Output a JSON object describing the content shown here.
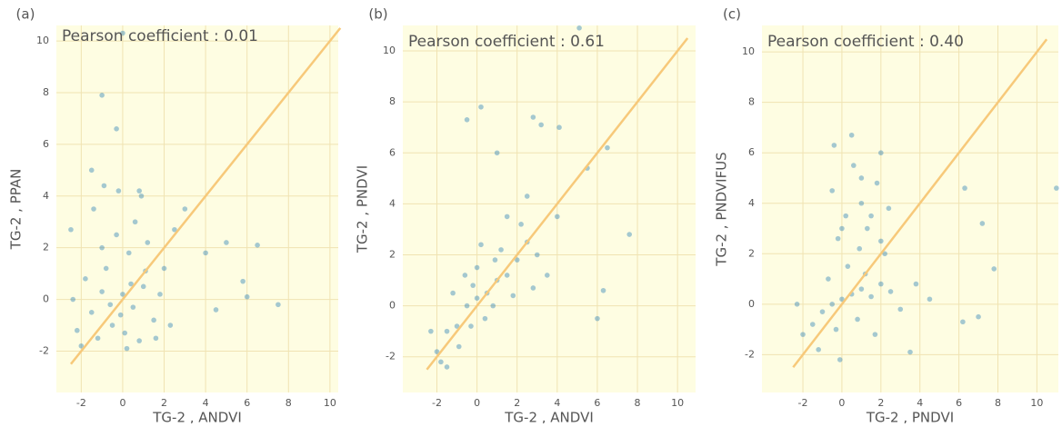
{
  "chart_data": [
    {
      "type": "scatter",
      "title": "(a)",
      "annotation": "Pearson coefficient : 0.01",
      "x_label": "TG-2 , ANDVI",
      "y_label": "TG-2 , PPAN",
      "color": "#1f77b4",
      "xlim": [
        -3.2,
        10.4
      ],
      "ylim": [
        -3.6,
        10.6
      ],
      "xticks": [
        -2,
        0,
        2,
        4,
        6,
        8,
        10
      ],
      "yticks": [
        -2,
        0,
        2,
        4,
        6,
        8,
        10
      ],
      "grid": true,
      "reference_line": {
        "x": [
          -2.5,
          10.5
        ],
        "y": [
          -2.5,
          10.5
        ],
        "color": "#f7c97a"
      },
      "x": [
        -1.5,
        -1,
        -0.5,
        0,
        0.5,
        1,
        1.5,
        -0.8,
        0.3,
        -1.2,
        0.8,
        1.8,
        -1.8,
        -0.3,
        0.6,
        -1.4,
        -0.2,
        1.2,
        2,
        2.3,
        -2,
        -0.6,
        0.1,
        1.1,
        -1,
        0.4,
        -0.1,
        1.6,
        2.5,
        -2.4,
        0.9,
        -0.9,
        0.2,
        -1,
        -0.3,
        0,
        7.5,
        6.5,
        5.8,
        4,
        3,
        -1.5,
        0.8,
        6,
        5,
        4.5,
        -2.5,
        -2.2
      ],
      "y": [
        -0.5,
        0.3,
        -1,
        0.2,
        -0.3,
        0.5,
        -0.8,
        1.2,
        1.8,
        -1.5,
        -1.6,
        0.2,
        0.8,
        2.5,
        3,
        3.5,
        4.2,
        2.2,
        1.2,
        -1,
        -1.8,
        -0.2,
        -1.3,
        1.1,
        2,
        0.6,
        -0.6,
        -1.5,
        2.7,
        0,
        4,
        4.4,
        -1.9,
        7.9,
        6.6,
        10.3,
        -0.2,
        2.1,
        0.7,
        1.8,
        3.5,
        5,
        4.2,
        0.1,
        2.2,
        -0.4,
        2.7,
        -1.2
      ]
    },
    {
      "type": "scatter",
      "title": "(b)",
      "annotation": "Pearson coefficient : 0.61",
      "x_label": "TG-2 , ANDVI",
      "y_label": "TG-2 , PNDVI",
      "color": "#1f77b4",
      "xlim": [
        -3.7,
        10.9
      ],
      "ylim": [
        -3.4,
        11
      ],
      "xticks": [
        -2,
        0,
        2,
        4,
        6,
        8,
        10
      ],
      "yticks": [
        -2,
        0,
        2,
        4,
        6,
        8,
        10
      ],
      "grid": true,
      "reference_line": {
        "x": [
          -2.5,
          10.5
        ],
        "y": [
          -2.5,
          10.5
        ],
        "color": "#f7c97a"
      },
      "x": [
        -2,
        -1.5,
        -1,
        -0.5,
        0,
        0.5,
        1,
        1.5,
        2,
        -1.2,
        -0.3,
        0.8,
        1.2,
        2.5,
        -1.8,
        0,
        -0.6,
        0.4,
        1.8,
        3,
        2.2,
        -0.9,
        0.2,
        -2.3,
        1.5,
        3.5,
        -1.5,
        0.9,
        2.8,
        -0.2,
        5.1,
        2.8,
        3.2,
        0.2,
        -0.5,
        4.1,
        6.5,
        7.6,
        5.5,
        6.3,
        6,
        4,
        1,
        2.5
      ],
      "y": [
        -1.8,
        -1,
        -0.8,
        0,
        0.3,
        0.5,
        1,
        1.2,
        1.8,
        0.5,
        -0.8,
        0,
        2.2,
        2.5,
        -2.2,
        1.5,
        1.2,
        -0.5,
        0.4,
        2,
        3.2,
        -1.6,
        2.4,
        -1,
        3.5,
        1.2,
        -2.4,
        1.8,
        0.7,
        0.8,
        10.9,
        7.4,
        7.1,
        7.8,
        7.3,
        7,
        6.2,
        2.8,
        5.4,
        0.6,
        -0.5,
        3.5,
        6,
        4.3
      ]
    },
    {
      "type": "scatter",
      "title": "(c)",
      "annotation": "Pearson coefficient : 0.40",
      "x_label": "TG-2 , PNDVI",
      "y_label": "TG-2 , PNDVIFUS",
      "color": "#1f77b4",
      "xlim": [
        -4.1,
        11.1
      ],
      "ylim": [
        -3.5,
        11.05
      ],
      "xticks": [
        -2,
        0,
        2,
        4,
        6,
        8,
        10
      ],
      "yticks": [
        -2,
        0,
        2,
        4,
        6,
        8,
        10
      ],
      "grid": true,
      "reference_line": {
        "x": [
          -2.5,
          10.5
        ],
        "y": [
          -2.5,
          10.5
        ],
        "color": "#f7c97a"
      },
      "x": [
        -2,
        -1.5,
        -1,
        -0.5,
        0,
        0.5,
        1,
        1.5,
        2,
        -1.2,
        -0.3,
        0.8,
        1.2,
        2.5,
        3,
        -0.7,
        0.3,
        -2.3,
        1.7,
        -0.1,
        2.2,
        -0.5,
        0.2,
        1,
        1.8,
        0.6,
        1.3,
        -0.2,
        2.4,
        0.9,
        3.8,
        4.5,
        11,
        7.8,
        7.2,
        6.3,
        6.2,
        7,
        3.5,
        0.5,
        -0.4,
        2,
        1,
        1.5,
        0,
        2
      ],
      "y": [
        -1.2,
        -0.8,
        -0.3,
        0,
        0.2,
        0.4,
        0.6,
        0.3,
        0.8,
        -1.8,
        -1,
        -0.6,
        1.2,
        0.5,
        -0.2,
        1,
        1.5,
        0,
        -1.2,
        -2.2,
        2,
        4.5,
        3.5,
        4,
        4.8,
        5.5,
        3,
        2.6,
        3.8,
        2.2,
        0.8,
        0.2,
        4.6,
        1.4,
        3.2,
        4.6,
        -0.7,
        -0.5,
        -1.9,
        6.7,
        6.3,
        6,
        5,
        3.5,
        3,
        2.5
      ]
    }
  ]
}
